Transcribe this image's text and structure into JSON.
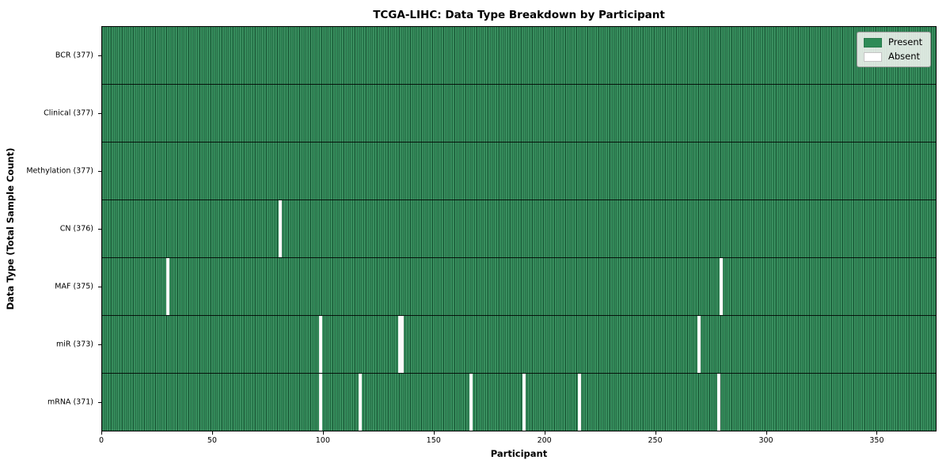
{
  "chart_data": {
    "type": "heatmap",
    "title": "TCGA-LIHC: Data Type Breakdown by Participant",
    "xlabel": "Participant",
    "ylabel": "Data Type (Total Sample Count)",
    "n_participants": 377,
    "xlim": [
      0,
      377
    ],
    "x_ticks": [
      0,
      50,
      100,
      150,
      200,
      250,
      300,
      350
    ],
    "grid": false,
    "colors": {
      "present": "#2e8b57",
      "absent": "#ffffff"
    },
    "legend": {
      "position": "upper right",
      "entries": [
        {
          "label": "Present",
          "color": "#2e8b57"
        },
        {
          "label": "Absent",
          "color": "#ffffff"
        }
      ]
    },
    "rows": [
      {
        "label": "BCR (377)",
        "data_type": "BCR",
        "total": 377,
        "absent_participants": []
      },
      {
        "label": "Clinical (377)",
        "data_type": "Clinical",
        "total": 377,
        "absent_participants": []
      },
      {
        "label": "Methylation (377)",
        "data_type": "Methylation",
        "total": 377,
        "absent_participants": []
      },
      {
        "label": "CN (376)",
        "data_type": "CN",
        "total": 376,
        "absent_participants": [
          80
        ]
      },
      {
        "label": "MAF (375)",
        "data_type": "MAF",
        "total": 375,
        "absent_participants": [
          29,
          279
        ]
      },
      {
        "label": "miR (373)",
        "data_type": "miR",
        "total": 373,
        "absent_participants": [
          98,
          134,
          135,
          269
        ]
      },
      {
        "label": "mRNA (371)",
        "data_type": "mRNA",
        "total": 371,
        "absent_participants": [
          98,
          116,
          166,
          190,
          215,
          278
        ]
      }
    ]
  }
}
